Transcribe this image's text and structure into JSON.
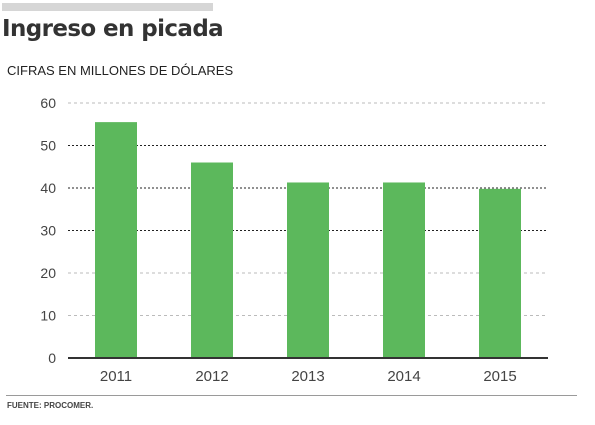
{
  "header": {
    "title": "Ingreso en picada",
    "subtitle": "CIFRAS EN MILLONES DE DÓLARES"
  },
  "footer": {
    "source": "FUENTE: PROCOMER."
  },
  "colors": {
    "bar": "#5cb85c",
    "axis": "#333333",
    "grid_major": "#222222",
    "grid_minor": "#bbbbbb",
    "label": "#444444"
  },
  "chart_data": {
    "type": "bar",
    "title": "Ingreso en picada",
    "subtitle": "CIFRAS EN MILLONES DE DÓLARES",
    "xlabel": "",
    "ylabel": "",
    "categories": [
      "2011",
      "2012",
      "2013",
      "2014",
      "2015"
    ],
    "values": [
      55.5,
      46,
      41.3,
      41.3,
      39.8
    ],
    "ylim": [
      0,
      60
    ],
    "yticks": [
      0,
      10,
      20,
      30,
      40,
      50,
      60
    ],
    "grid": true,
    "legend": "none"
  }
}
